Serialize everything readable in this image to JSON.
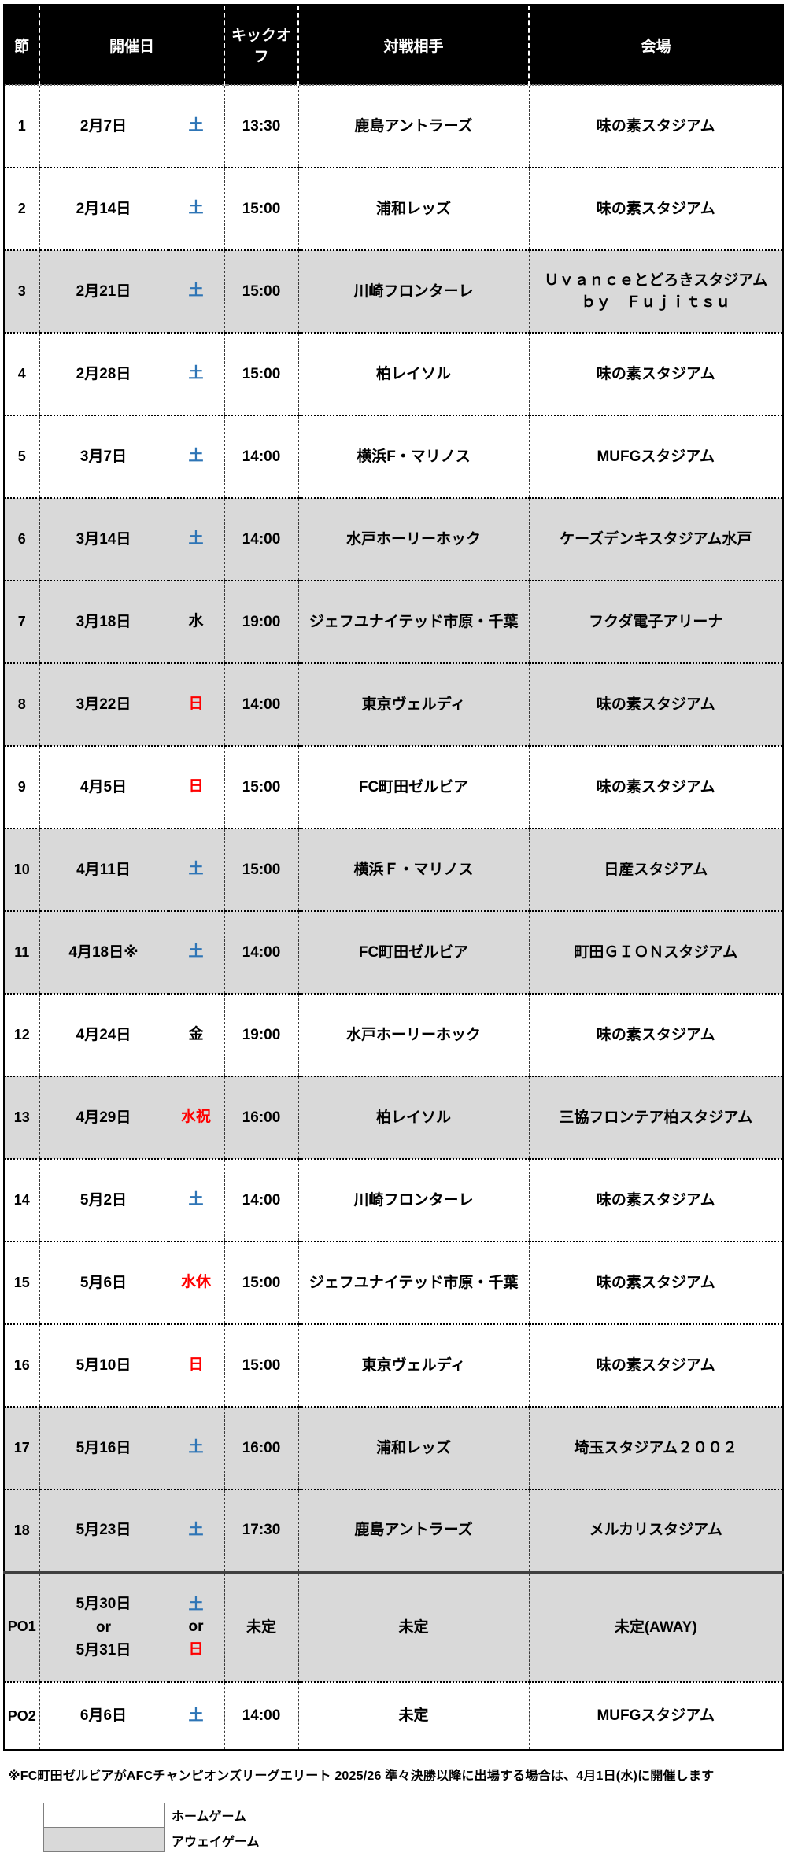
{
  "colors": {
    "header_bg": "#000000",
    "header_text": "#ffffff",
    "home_row_bg": "#ffffff",
    "away_row_bg": "#d9d9d9",
    "saturday_blue": "#2e75b6",
    "sunday_holiday_red": "#ff0000",
    "weekday_black": "#000000"
  },
  "table": {
    "headers": {
      "round": "節",
      "date": "開催日",
      "kickoff": "キックオフ",
      "opponent": "対戦相手",
      "venue": "会場"
    },
    "rows": [
      {
        "round": "1",
        "date": "2月7日",
        "day_lines": [
          {
            "text": "土",
            "color": "#2e75b6"
          }
        ],
        "kickoff": "13:30",
        "opponent": "鹿島アントラーズ",
        "venue": "味の素スタジアム",
        "type": "home"
      },
      {
        "round": "2",
        "date": "2月14日",
        "day_lines": [
          {
            "text": "土",
            "color": "#2e75b6"
          }
        ],
        "kickoff": "15:00",
        "opponent": "浦和レッズ",
        "venue": "味の素スタジアム",
        "type": "home"
      },
      {
        "round": "3",
        "date": "2月21日",
        "day_lines": [
          {
            "text": "土",
            "color": "#2e75b6"
          }
        ],
        "kickoff": "15:00",
        "opponent": "川崎フロンターレ",
        "venue": "Ｕｖａｎｃｅとどろきスタジアム\nｂｙ　Ｆｕｊｉｔｓｕ",
        "type": "away"
      },
      {
        "round": "4",
        "date": "2月28日",
        "day_lines": [
          {
            "text": "土",
            "color": "#2e75b6"
          }
        ],
        "kickoff": "15:00",
        "opponent": "柏レイソル",
        "venue": "味の素スタジアム",
        "type": "home"
      },
      {
        "round": "5",
        "date": "3月7日",
        "day_lines": [
          {
            "text": "土",
            "color": "#2e75b6"
          }
        ],
        "kickoff": "14:00",
        "opponent": "横浜F・マリノス",
        "venue": "MUFGスタジアム",
        "type": "home"
      },
      {
        "round": "6",
        "date": "3月14日",
        "day_lines": [
          {
            "text": "土",
            "color": "#2e75b6"
          }
        ],
        "kickoff": "14:00",
        "opponent": "水戸ホーリーホック",
        "venue": "ケーズデンキスタジアム水戸",
        "type": "away"
      },
      {
        "round": "7",
        "date": "3月18日",
        "day_lines": [
          {
            "text": "水",
            "color": "#000000"
          }
        ],
        "kickoff": "19:00",
        "opponent": "ジェフユナイテッド市原・千葉",
        "venue": "フクダ電子アリーナ",
        "type": "away"
      },
      {
        "round": "8",
        "date": "3月22日",
        "day_lines": [
          {
            "text": "日",
            "color": "#ff0000"
          }
        ],
        "kickoff": "14:00",
        "opponent": "東京ヴェルディ",
        "venue": "味の素スタジアム",
        "type": "away"
      },
      {
        "round": "9",
        "date": "4月5日",
        "day_lines": [
          {
            "text": "日",
            "color": "#ff0000"
          }
        ],
        "kickoff": "15:00",
        "opponent": "FC町田ゼルビア",
        "venue": "味の素スタジアム",
        "type": "home"
      },
      {
        "round": "10",
        "date": "4月11日",
        "day_lines": [
          {
            "text": "土",
            "color": "#2e75b6"
          }
        ],
        "kickoff": "15:00",
        "opponent": "横浜Ｆ・マリノス",
        "venue": "日産スタジアム",
        "type": "away"
      },
      {
        "round": "11",
        "date": "4月18日※",
        "day_lines": [
          {
            "text": "土",
            "color": "#2e75b6"
          }
        ],
        "kickoff": "14:00",
        "opponent": "FC町田ゼルビア",
        "venue": "町田ＧＩＯＮスタジアム",
        "type": "away"
      },
      {
        "round": "12",
        "date": "4月24日",
        "day_lines": [
          {
            "text": "金",
            "color": "#000000"
          }
        ],
        "kickoff": "19:00",
        "opponent": "水戸ホーリーホック",
        "venue": "味の素スタジアム",
        "type": "home"
      },
      {
        "round": "13",
        "date": "4月29日",
        "day_lines": [
          {
            "text": "水祝",
            "color": "#ff0000"
          }
        ],
        "kickoff": "16:00",
        "opponent": "柏レイソル",
        "venue": "三協フロンテア柏スタジアム",
        "type": "away"
      },
      {
        "round": "14",
        "date": "5月2日",
        "day_lines": [
          {
            "text": "土",
            "color": "#2e75b6"
          }
        ],
        "kickoff": "14:00",
        "opponent": "川崎フロンターレ",
        "venue": "味の素スタジアム",
        "type": "home"
      },
      {
        "round": "15",
        "date": "5月6日",
        "day_lines": [
          {
            "text": "水休",
            "color": "#ff0000"
          }
        ],
        "kickoff": "15:00",
        "opponent": "ジェフユナイテッド市原・千葉",
        "venue": "味の素スタジアム",
        "type": "home"
      },
      {
        "round": "16",
        "date": "5月10日",
        "day_lines": [
          {
            "text": "日",
            "color": "#ff0000"
          }
        ],
        "kickoff": "15:00",
        "opponent": "東京ヴェルディ",
        "venue": "味の素スタジアム",
        "type": "home"
      },
      {
        "round": "17",
        "date": "5月16日",
        "day_lines": [
          {
            "text": "土",
            "color": "#2e75b6"
          }
        ],
        "kickoff": "16:00",
        "opponent": "浦和レッズ",
        "venue": "埼玉スタジアム２００２",
        "type": "away"
      },
      {
        "round": "18",
        "date": "5月23日",
        "day_lines": [
          {
            "text": "土",
            "color": "#2e75b6"
          }
        ],
        "kickoff": "17:30",
        "opponent": "鹿島アントラーズ",
        "venue": "メルカリスタジアム",
        "type": "away"
      },
      {
        "round": "PO1",
        "date": "5月30日\nor\n5月31日",
        "day_lines": [
          {
            "text": "土",
            "color": "#2e75b6"
          },
          {
            "text": "or",
            "color": "#000000"
          },
          {
            "text": "日",
            "color": "#ff0000"
          }
        ],
        "kickoff": "未定",
        "opponent": "未定",
        "venue": "未定(AWAY)",
        "type": "away",
        "po_divider": true,
        "tall": true
      },
      {
        "round": "PO2",
        "date": "6月6日",
        "day_lines": [
          {
            "text": "土",
            "color": "#2e75b6"
          }
        ],
        "kickoff": "14:00",
        "opponent": "未定",
        "venue": "MUFGスタジアム",
        "type": "home",
        "short": true
      }
    ]
  },
  "footnote": "※FC町田ゼルビアがAFCチャンピオンズリーグエリート 2025/26 準々決勝以降に出場する場合は、4月1日(水)に開催します",
  "legend": {
    "home_label": "ホームゲーム",
    "away_label": "アウェイゲーム"
  }
}
